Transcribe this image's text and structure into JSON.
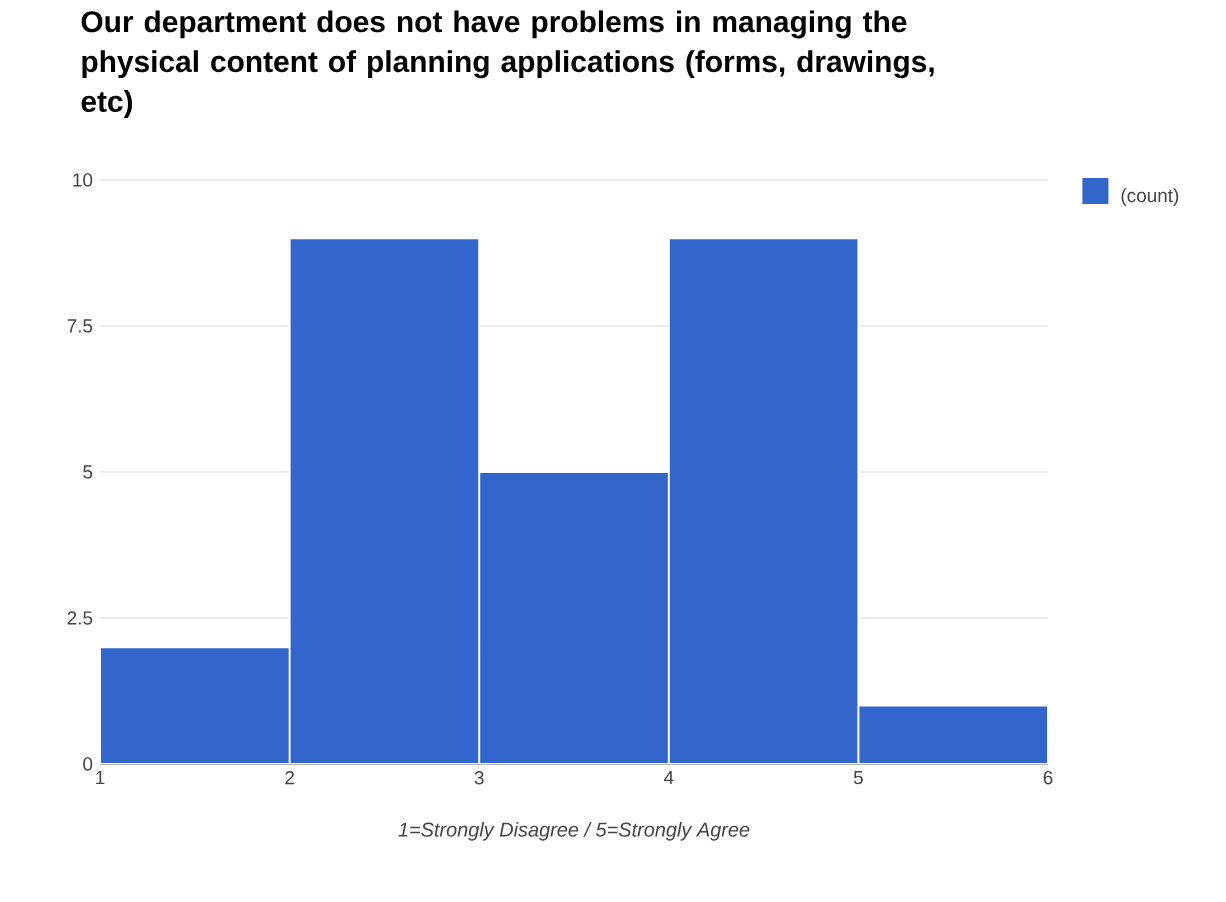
{
  "chart_data": {
    "type": "histogram",
    "title": "Our department does not have problems in managing the physical content of planning applications (forms, drawings, etc)",
    "xlabel": "*1=Strongly Disagree / 5=Strongly Agree*",
    "bins": [
      1,
      2,
      3,
      4,
      5,
      6
    ],
    "series": [
      {
        "name": "(count)",
        "color": "#3366cc",
        "values": [
          2,
          9,
          5,
          9,
          1
        ]
      }
    ],
    "xlim": [
      1,
      6
    ],
    "xticks": [
      1,
      2,
      3,
      4,
      5,
      6
    ],
    "ylim": [
      0,
      10
    ],
    "yticks": [
      0,
      {
        "value": 2.5,
        "label": "2.5"
      },
      5,
      {
        "value": 7.5,
        "label": "7.5"
      },
      10
    ],
    "grid": "y",
    "legend": "top right"
  }
}
